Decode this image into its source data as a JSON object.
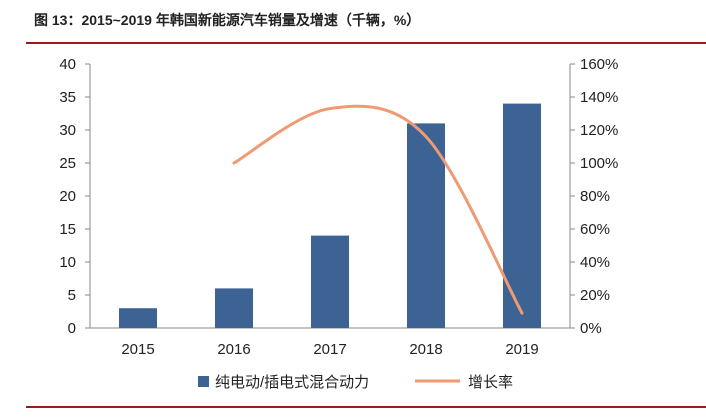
{
  "chart_data": {
    "type": "bar",
    "title": "图 13：2015~2019 年韩国新能源汽车销量及增速（千辆，%）",
    "categories": [
      "2015",
      "2016",
      "2017",
      "2018",
      "2019"
    ],
    "series": [
      {
        "name": "纯电动/插电式混合动力",
        "type": "bar",
        "axis": "left",
        "color": "#3d6395",
        "values": [
          3,
          6,
          14,
          31,
          34
        ]
      },
      {
        "name": "增长率",
        "type": "line",
        "axis": "right",
        "color": "#ee9a73",
        "values": [
          null,
          100,
          133,
          116,
          9
        ]
      }
    ],
    "ylim": [
      0,
      40
    ],
    "yticks": [
      "0",
      "5",
      "10",
      "15",
      "20",
      "25",
      "30",
      "35",
      "40"
    ],
    "y2lim": [
      0,
      160
    ],
    "y2ticks": [
      "0%",
      "20%",
      "40%",
      "60%",
      "80%",
      "100%",
      "120%",
      "140%",
      "160%"
    ],
    "legend": "bottom"
  }
}
